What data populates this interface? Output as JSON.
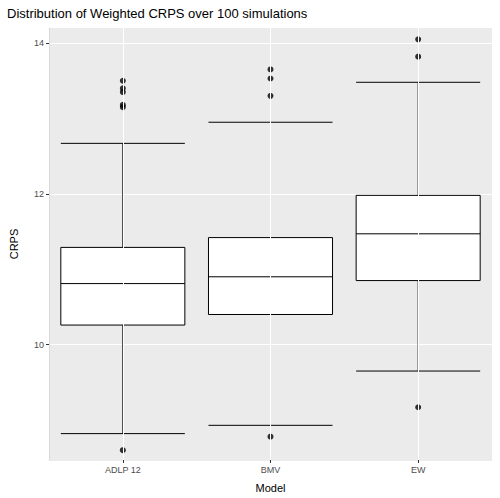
{
  "chart_data": {
    "type": "boxplot",
    "title": "Distribution of Weighted CRPS over 100 simulations",
    "x_label": "Model",
    "y_label": "CRPS",
    "categories": [
      "ADLP 12",
      "BMV",
      "EW"
    ],
    "boxes": [
      {
        "whisker_low": 8.82,
        "q1": 10.26,
        "median": 10.81,
        "q3": 11.29,
        "whisker_high": 12.67,
        "outliers": [
          13.5,
          13.4,
          13.35,
          13.18,
          13.15,
          8.6
        ]
      },
      {
        "whisker_low": 8.93,
        "q1": 10.4,
        "median": 10.9,
        "q3": 11.42,
        "whisker_high": 12.95,
        "outliers": [
          13.65,
          13.53,
          13.3,
          8.78
        ]
      },
      {
        "whisker_low": 9.65,
        "q1": 10.85,
        "median": 11.47,
        "q3": 11.98,
        "whisker_high": 13.48,
        "outliers": [
          14.05,
          13.82,
          9.17
        ]
      }
    ],
    "color": "#000000",
    "ylim": [
      8.47,
      14.2
    ],
    "yticks": [
      10,
      12,
      14
    ],
    "grid": true
  }
}
